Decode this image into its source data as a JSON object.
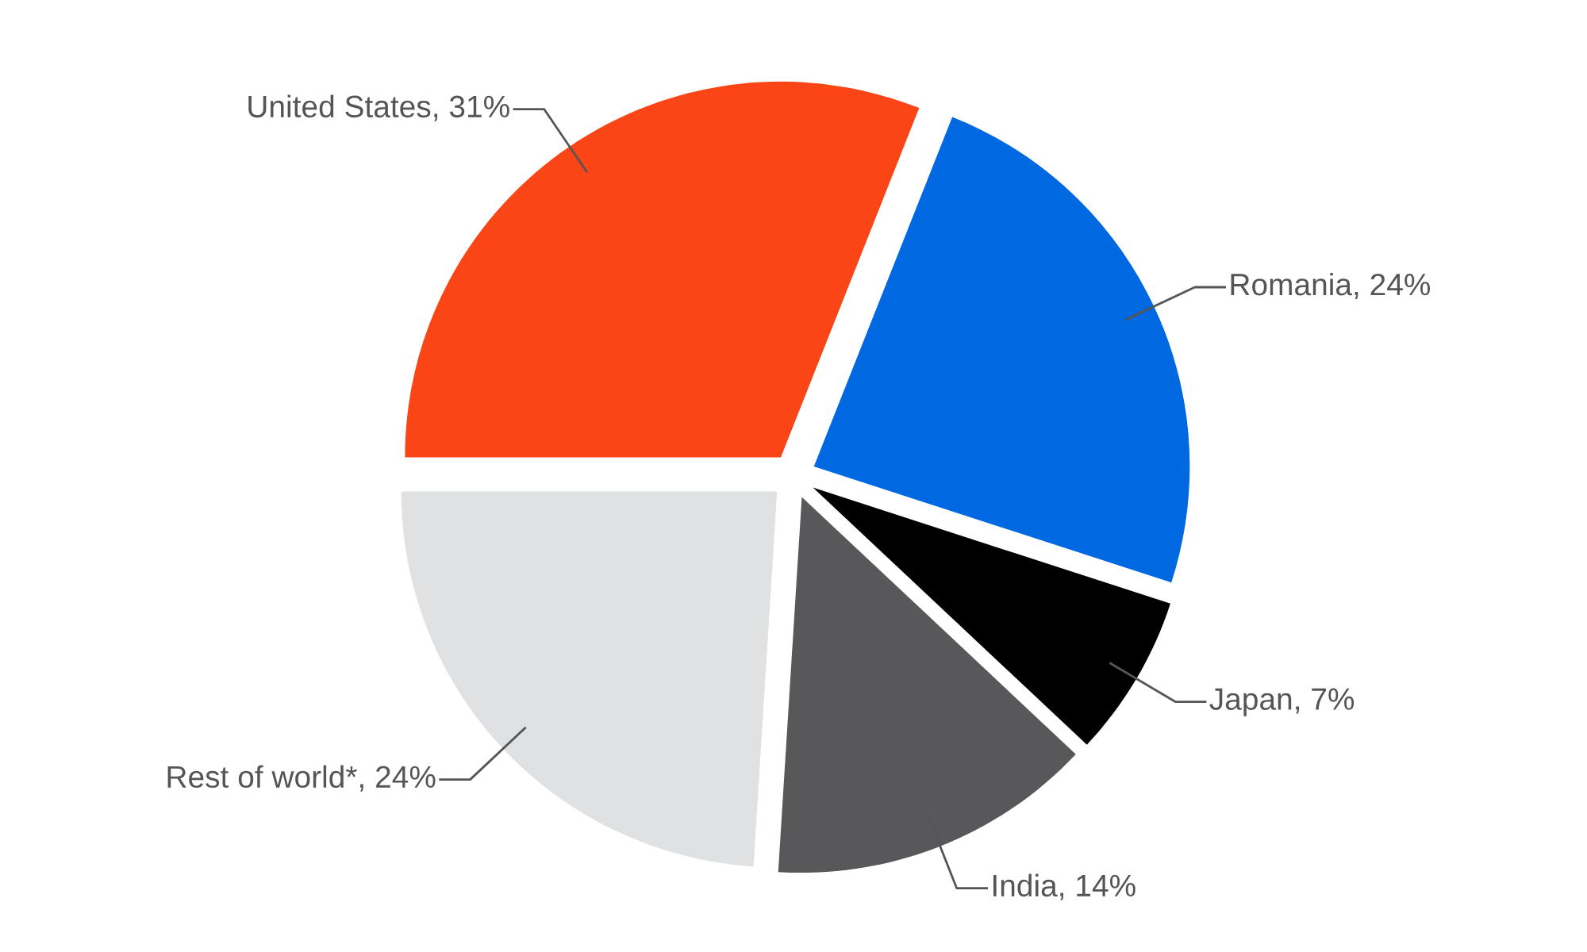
{
  "chart_data": {
    "type": "pie",
    "categories": [
      "United States",
      "Romania",
      "Japan",
      "India",
      "Rest of world*"
    ],
    "values": [
      31,
      24,
      7,
      14,
      24
    ],
    "value_labels": [
      "31%",
      "24%",
      "7%",
      "14%",
      "24%"
    ],
    "colors": [
      "#fa4616",
      "#0068e0",
      "#000000",
      "#58585a",
      "#dfe1e3"
    ],
    "legend": false
  }
}
